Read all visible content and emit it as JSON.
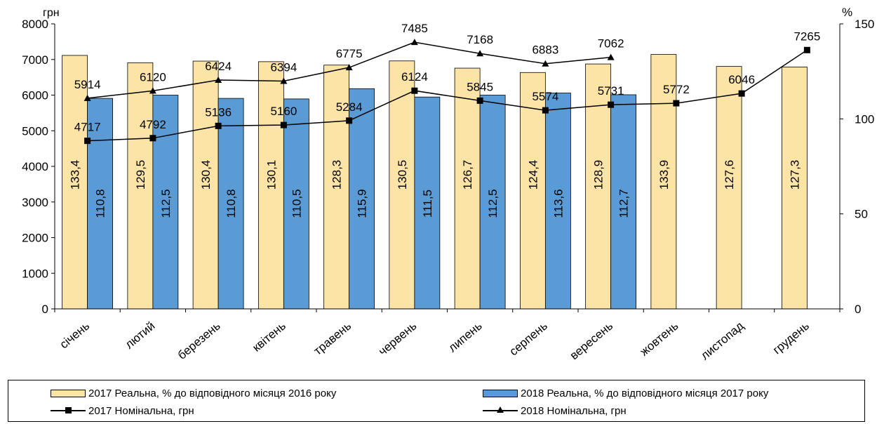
{
  "chart_data": {
    "type": "bar",
    "categories": [
      "січень",
      "лютий",
      "березень",
      "квітень",
      "травень",
      "червень",
      "липень",
      "серпень",
      "вересень",
      "жовтень",
      "листопад",
      "грудень"
    ],
    "left_axis": {
      "label": "грн",
      "ylim": [
        0,
        8000
      ],
      "ticks": [
        "0",
        "1000",
        "2000",
        "3000",
        "4000",
        "5000",
        "6000",
        "7000",
        "8000"
      ]
    },
    "right_axis": {
      "label": "%",
      "ylim": [
        0,
        150
      ],
      "ticks": [
        "0",
        "50",
        "100",
        "150"
      ]
    },
    "grid": false,
    "legend_position": "bottom",
    "series": [
      {
        "name": "2017 Реальна, % до відповідного місяця 2016 року",
        "kind": "bar",
        "axis": "right",
        "color": "#FCE4A6",
        "values": [
          133.4,
          129.5,
          130.4,
          130.1,
          128.3,
          130.5,
          126.7,
          124.4,
          128.9,
          133.9,
          127.6,
          127.3
        ],
        "labels": [
          "133,4",
          "129,5",
          "130,4",
          "130,1",
          "128,3",
          "130,5",
          "126,7",
          "124,4",
          "128,9",
          "133,9",
          "127,6",
          "127,3"
        ]
      },
      {
        "name": "2018 Реальна, % до відповідного місяця 2017 року",
        "kind": "bar",
        "axis": "right",
        "color": "#5B9BD5",
        "values": [
          110.8,
          112.5,
          110.8,
          110.5,
          115.9,
          111.5,
          112.5,
          113.6,
          112.7,
          null,
          null,
          null
        ],
        "labels": [
          "110,8",
          "112,5",
          "110,8",
          "110,5",
          "115,9",
          "111,5",
          "112,5",
          "113,6",
          "112,7",
          null,
          null,
          null
        ]
      },
      {
        "name": "2017 Номінальна, грн",
        "kind": "line",
        "marker": "square",
        "axis": "left",
        "color": "#000000",
        "values": [
          4717,
          4792,
          5136,
          5160,
          5284,
          6124,
          5845,
          5574,
          5731,
          5772,
          6046,
          7265
        ],
        "labels": [
          "4717",
          "4792",
          "5136",
          "5160",
          "5284",
          "6124",
          "5845",
          "5574",
          "5731",
          "5772",
          "6046",
          "7265"
        ]
      },
      {
        "name": "2018 Номінальна, грн",
        "kind": "line",
        "marker": "triangle",
        "axis": "left",
        "color": "#000000",
        "values": [
          5914,
          6120,
          6424,
          6394,
          6775,
          7485,
          7168,
          6883,
          7062,
          null,
          null,
          null
        ],
        "labels": [
          "5914",
          "6120",
          "6424",
          "6394",
          "6775",
          "7485",
          "7168",
          "6883",
          "7062",
          null,
          null,
          null
        ]
      }
    ]
  }
}
